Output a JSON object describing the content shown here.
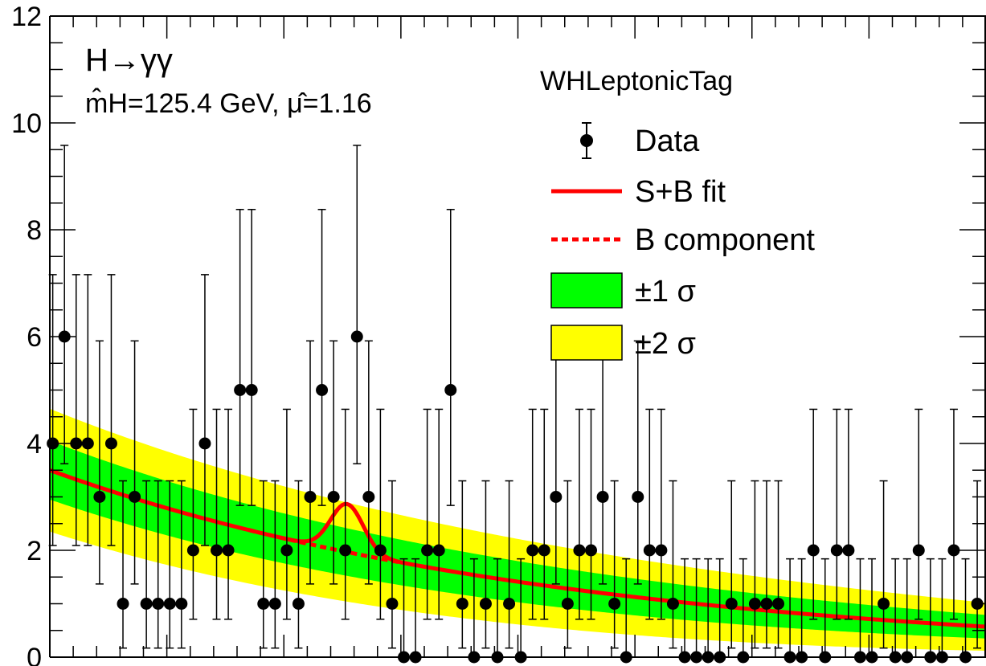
{
  "chart_data": {
    "type": "scatter",
    "category_label": "WHLeptonicTag",
    "process_label": "H→γγ",
    "fit_label": "m̂H=125.4 GeV, μ̂=1.16",
    "xlim": [
      100,
      180
    ],
    "ylim": [
      0,
      12
    ],
    "y_ticks": [
      0,
      2,
      4,
      6,
      8,
      10,
      12
    ],
    "grid": false,
    "legend_position": "top-right",
    "legend": [
      {
        "key": "data",
        "label": "Data"
      },
      {
        "key": "sb",
        "label": "S+B fit"
      },
      {
        "key": "b",
        "label": "B component"
      },
      {
        "key": "band1",
        "label": "±1 σ"
      },
      {
        "key": "band2",
        "label": "±2 σ"
      }
    ],
    "colors": {
      "fit": "#ff0000",
      "band1": "#00ff00",
      "band2": "#ffff00",
      "data": "#000000"
    },
    "data_points": {
      "x": [
        100.25,
        101.25,
        102.25,
        103.25,
        104.25,
        105.25,
        106.25,
        107.25,
        108.25,
        109.25,
        110.25,
        111.25,
        112.25,
        113.25,
        114.25,
        115.25,
        116.25,
        117.25,
        118.25,
        119.25,
        120.25,
        121.25,
        122.25,
        123.25,
        124.25,
        125.25,
        126.25,
        127.25,
        128.25,
        129.25,
        130.25,
        131.25,
        132.25,
        133.25,
        134.25,
        135.25,
        136.25,
        137.25,
        138.25,
        139.25,
        140.25,
        141.25,
        142.25,
        143.25,
        144.25,
        145.25,
        146.25,
        147.25,
        148.25,
        149.25,
        150.25,
        151.25,
        152.25,
        153.25,
        154.25,
        155.25,
        156.25,
        157.25,
        158.25,
        159.25,
        160.25,
        161.25,
        162.25,
        163.25,
        164.25,
        165.25,
        166.25,
        167.25,
        168.25,
        169.25,
        170.25,
        171.25,
        172.25,
        173.25,
        174.25,
        175.25,
        176.25,
        177.25,
        178.25,
        179.25
      ],
      "y": [
        4,
        6,
        4,
        4,
        3,
        4,
        1,
        3,
        1,
        1,
        1,
        1,
        2,
        4,
        2,
        2,
        5,
        5,
        1,
        1,
        2,
        1,
        3,
        5,
        3,
        2,
        6,
        3,
        2,
        1,
        0,
        0,
        2,
        2,
        5,
        1,
        0,
        1,
        0,
        1,
        0,
        2,
        2,
        3,
        1,
        2,
        2,
        3,
        1,
        0,
        3,
        2,
        2,
        1,
        0,
        0,
        0,
        0,
        1,
        0,
        1,
        1,
        1,
        0,
        0,
        2,
        0,
        2,
        2,
        0,
        0,
        1,
        0,
        0,
        2,
        0,
        0,
        2,
        0,
        1
      ]
    },
    "background_fit": {
      "x": [
        100,
        180
      ],
      "y_at": [
        3.5,
        0.57
      ]
    },
    "signal_peak": {
      "mass": 125.4,
      "height": 0.9,
      "width": 1.4
    },
    "band1_halfwidth": {
      "at_100": 0.55,
      "at_180": 0.22
    },
    "band2_halfwidth": {
      "at_100": 1.15,
      "at_180": 0.45
    }
  }
}
